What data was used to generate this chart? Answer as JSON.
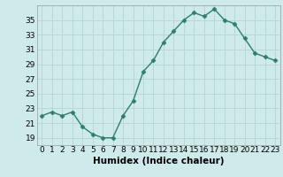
{
  "x": [
    0,
    1,
    2,
    3,
    4,
    5,
    6,
    7,
    8,
    9,
    10,
    11,
    12,
    13,
    14,
    15,
    16,
    17,
    18,
    19,
    20,
    21,
    22,
    23
  ],
  "y": [
    22,
    22.5,
    22,
    22.5,
    20.5,
    19.5,
    19,
    19,
    22,
    24,
    28,
    29.5,
    32,
    33.5,
    35,
    36,
    35.5,
    36.5,
    35,
    34.5,
    32.5,
    30.5,
    30,
    29.5
  ],
  "xlabel": "Humidex (Indice chaleur)",
  "ylim": [
    18,
    37
  ],
  "xlim": [
    -0.5,
    23.5
  ],
  "yticks": [
    19,
    21,
    23,
    25,
    27,
    29,
    31,
    33,
    35
  ],
  "xticks": [
    0,
    1,
    2,
    3,
    4,
    5,
    6,
    7,
    8,
    9,
    10,
    11,
    12,
    13,
    14,
    15,
    16,
    17,
    18,
    19,
    20,
    21,
    22,
    23
  ],
  "line_color": "#2e7d6e",
  "marker": "D",
  "marker_size": 2.5,
  "bg_color": "#ceeaea",
  "grid_color": "#b8d8d8",
  "label_fontsize": 7.5,
  "tick_fontsize": 6.5
}
